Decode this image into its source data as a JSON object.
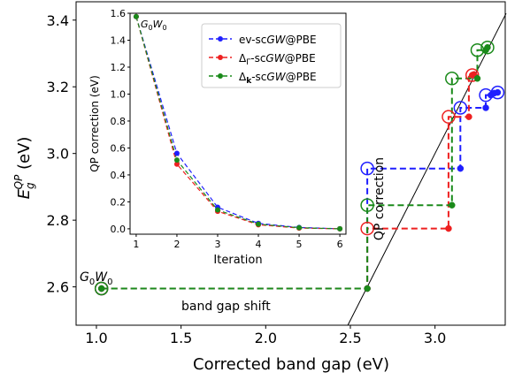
{
  "chart_data": [
    {
      "type": "scatter",
      "xlabel": "Corrected band gap (eV)",
      "ylabel_main": "E",
      "ylabel_sub": "g",
      "ylabel_sup": "QP",
      "ylabel_unit": " (eV)",
      "xlim": [
        0.88,
        3.42
      ],
      "ylim": [
        2.485,
        3.455
      ],
      "xticks": [
        1.0,
        1.5,
        2.0,
        2.5,
        3.0
      ],
      "xtick_labels": [
        "1.0",
        "1.5",
        "2.0",
        "2.5",
        "3.0"
      ],
      "yticks": [
        2.6,
        2.8,
        3.0,
        3.2,
        3.4
      ],
      "ytick_labels": [
        "2.6",
        "2.8",
        "3.0",
        "3.2",
        "3.4"
      ],
      "diagonal": true,
      "annotations": {
        "g0w0": {
          "main": "G",
          "sub1": "0",
          "mid": "W",
          "sub2": "0"
        },
        "band_gap_shift": "band gap shift",
        "qp_correction": "QP correction"
      },
      "series": [
        {
          "name": "ev-scGW@PBE",
          "color": "#1f1fff",
          "iterations": [
            [
              1.03,
              2.595
            ],
            [
              2.6,
              2.595
            ],
            [
              2.6,
              2.955
            ],
            [
              3.15,
              2.955
            ],
            [
              3.15,
              3.137
            ],
            [
              3.3,
              3.137
            ],
            [
              3.3,
              3.175
            ],
            [
              3.33,
              3.175
            ],
            [
              3.33,
              3.181
            ],
            [
              3.35,
              3.181
            ]
          ],
          "points": [
            [
              1.03,
              2.595
            ],
            [
              2.6,
              2.595
            ],
            [
              3.15,
              2.955
            ],
            [
              3.3,
              3.137
            ],
            [
              3.33,
              3.175
            ],
            [
              3.35,
              3.181
            ],
            [
              3.37,
              3.183
            ]
          ],
          "circled": [
            [
              1.03,
              2.595
            ],
            [
              2.6,
              2.955
            ],
            [
              3.15,
              3.137
            ],
            [
              3.3,
              3.175
            ],
            [
              3.37,
              3.183
            ]
          ]
        },
        {
          "name": "ΔΓ-scGW@PBE",
          "color": "#ee2020",
          "iterations": [
            [
              1.03,
              2.595
            ],
            [
              2.6,
              2.595
            ],
            [
              2.6,
              2.775
            ],
            [
              3.08,
              2.775
            ],
            [
              3.08,
              3.11
            ],
            [
              3.2,
              3.11
            ],
            [
              3.2,
              3.235
            ],
            [
              3.22,
              3.235
            ]
          ],
          "points": [
            [
              1.03,
              2.595
            ],
            [
              2.6,
              2.595
            ],
            [
              3.08,
              2.775
            ],
            [
              3.2,
              3.11
            ],
            [
              3.22,
              3.235
            ],
            [
              3.23,
              3.237
            ]
          ],
          "circled": [
            [
              1.03,
              2.595
            ],
            [
              2.6,
              2.775
            ],
            [
              3.08,
              3.11
            ],
            [
              3.22,
              3.235
            ]
          ]
        },
        {
          "name": "Δk-scGW@PBE",
          "color": "#1a8a1a",
          "iterations": [
            [
              1.03,
              2.595
            ],
            [
              2.6,
              2.595
            ],
            [
              2.6,
              2.845
            ],
            [
              3.1,
              2.845
            ],
            [
              3.1,
              3.225
            ],
            [
              3.25,
              3.225
            ],
            [
              3.25,
              3.31
            ],
            [
              3.3,
              3.31
            ],
            [
              3.3,
              3.318
            ]
          ],
          "points": [
            [
              1.03,
              2.595
            ],
            [
              2.6,
              2.595
            ],
            [
              3.1,
              2.845
            ],
            [
              3.25,
              3.225
            ],
            [
              3.3,
              3.31
            ],
            [
              3.31,
              3.318
            ]
          ],
          "circled": [
            [
              1.03,
              2.595
            ],
            [
              2.6,
              2.845
            ],
            [
              3.1,
              3.225
            ],
            [
              3.25,
              3.31
            ],
            [
              3.31,
              3.318
            ]
          ]
        }
      ]
    },
    {
      "type": "line",
      "title_main": "G",
      "title_sub1": "0",
      "title_mid": "W",
      "title_sub2": "0",
      "xlabel": "Iteration",
      "ylabel": "QP correction (eV)",
      "xlim": [
        0.85,
        6.15
      ],
      "ylim": [
        -0.04,
        1.6
      ],
      "x": [
        1,
        2,
        3,
        4,
        5,
        6
      ],
      "xticks": [
        1,
        2,
        3,
        4,
        5,
        6
      ],
      "xtick_labels": [
        "1",
        "2",
        "3",
        "4",
        "5",
        "6"
      ],
      "yticks": [
        0.0,
        0.2,
        0.4,
        0.6,
        0.8,
        1.0,
        1.2,
        1.4,
        1.6
      ],
      "ytick_labels": [
        "0.0",
        "0.2",
        "0.4",
        "0.6",
        "0.8",
        "1.0",
        "1.2",
        "1.4",
        "1.6"
      ],
      "legend_position": "top-right",
      "series": [
        {
          "name": "ev-scGW@PBE",
          "legend_prefix": "ev-sc",
          "legend_em": "GW",
          "legend_suffix": "@PBE",
          "color": "#1f1fff",
          "values": [
            1.575,
            0.56,
            0.16,
            0.04,
            0.01,
            0.0
          ]
        },
        {
          "name": "ΔΓ-scGW@PBE",
          "legend_prefix": "Δ",
          "legend_sub": "Γ",
          "legend_mid": "-sc",
          "legend_em": "GW",
          "legend_suffix": "@PBE",
          "color": "#ee2020",
          "values": [
            1.575,
            0.48,
            0.13,
            0.03,
            0.005,
            0.0
          ]
        },
        {
          "name": "Δk-scGW@PBE",
          "legend_prefix": "Δ",
          "legend_sub": "k",
          "legend_mid": "-sc",
          "legend_em": "GW",
          "legend_suffix": "@PBE",
          "color": "#1a8a1a",
          "values": [
            1.575,
            0.51,
            0.14,
            0.035,
            0.008,
            0.0
          ]
        }
      ]
    }
  ]
}
